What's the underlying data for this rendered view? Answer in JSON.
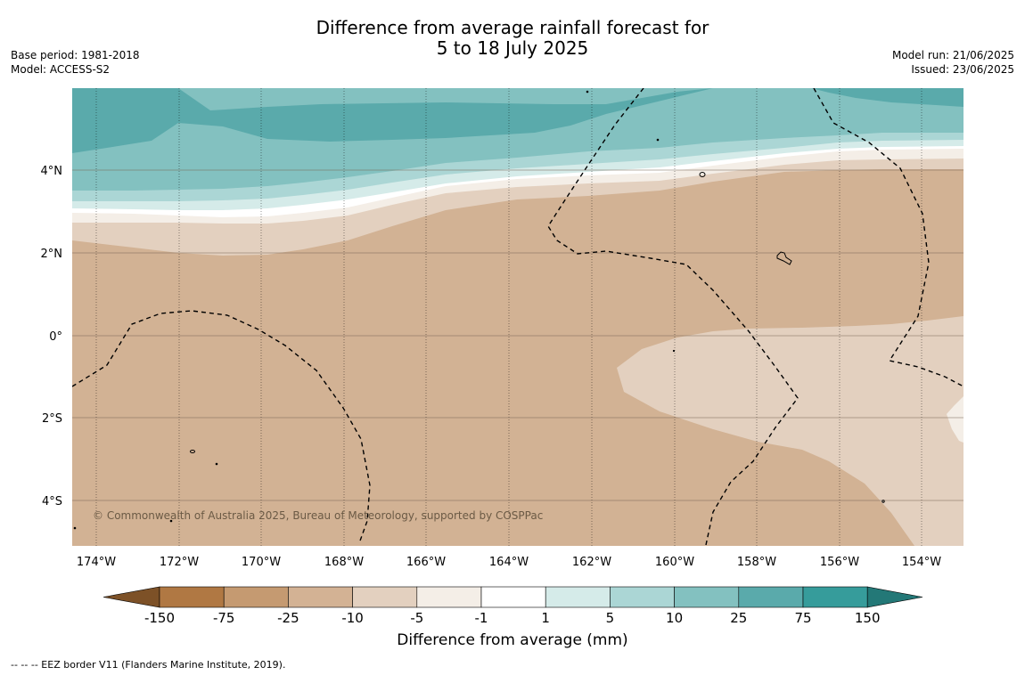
{
  "header": {
    "title_line1": "Difference from average rainfall forecast for",
    "title_line2": "5 to 18 July 2025",
    "base_period": "Base period: 1981-2018",
    "model": "Model: ACCESS-S2",
    "model_run": "Model run: 21/06/2025",
    "issued": "Issued: 23/06/2025"
  },
  "map": {
    "lat_labels": [
      "4°N",
      "2°N",
      "0°",
      "2°S",
      "4°S"
    ],
    "lon_labels": [
      "174°W",
      "172°W",
      "170°W",
      "168°W",
      "166°W",
      "164°W",
      "162°W",
      "160°W",
      "158°W",
      "156°W",
      "154°W"
    ],
    "copyright": "© Commonwealth of Australia 2025, Bureau of Meteorology, supported by COSPPac",
    "lon_range": [
      -174.6,
      -153.0
    ],
    "lat_range": [
      -5.2,
      5.9
    ]
  },
  "legend": {
    "title": "Difference from average (mm)",
    "ticks": [
      "-150",
      "-75",
      "-25",
      "-10",
      "-5",
      "-1",
      "1",
      "5",
      "10",
      "25",
      "75",
      "150"
    ],
    "colors": [
      "#7d5127",
      "#b07843",
      "#c59a71",
      "#d3b294",
      "#e3d0bf",
      "#f4eee7",
      "#ffffff",
      "#d5ebe9",
      "#abd6d5",
      "#83c1c0",
      "#5aaaab",
      "#369c9b",
      "#237877"
    ]
  },
  "footnote": "--  --  -- EEZ border V11 (Flanders Marine Institute, 2019)."
}
